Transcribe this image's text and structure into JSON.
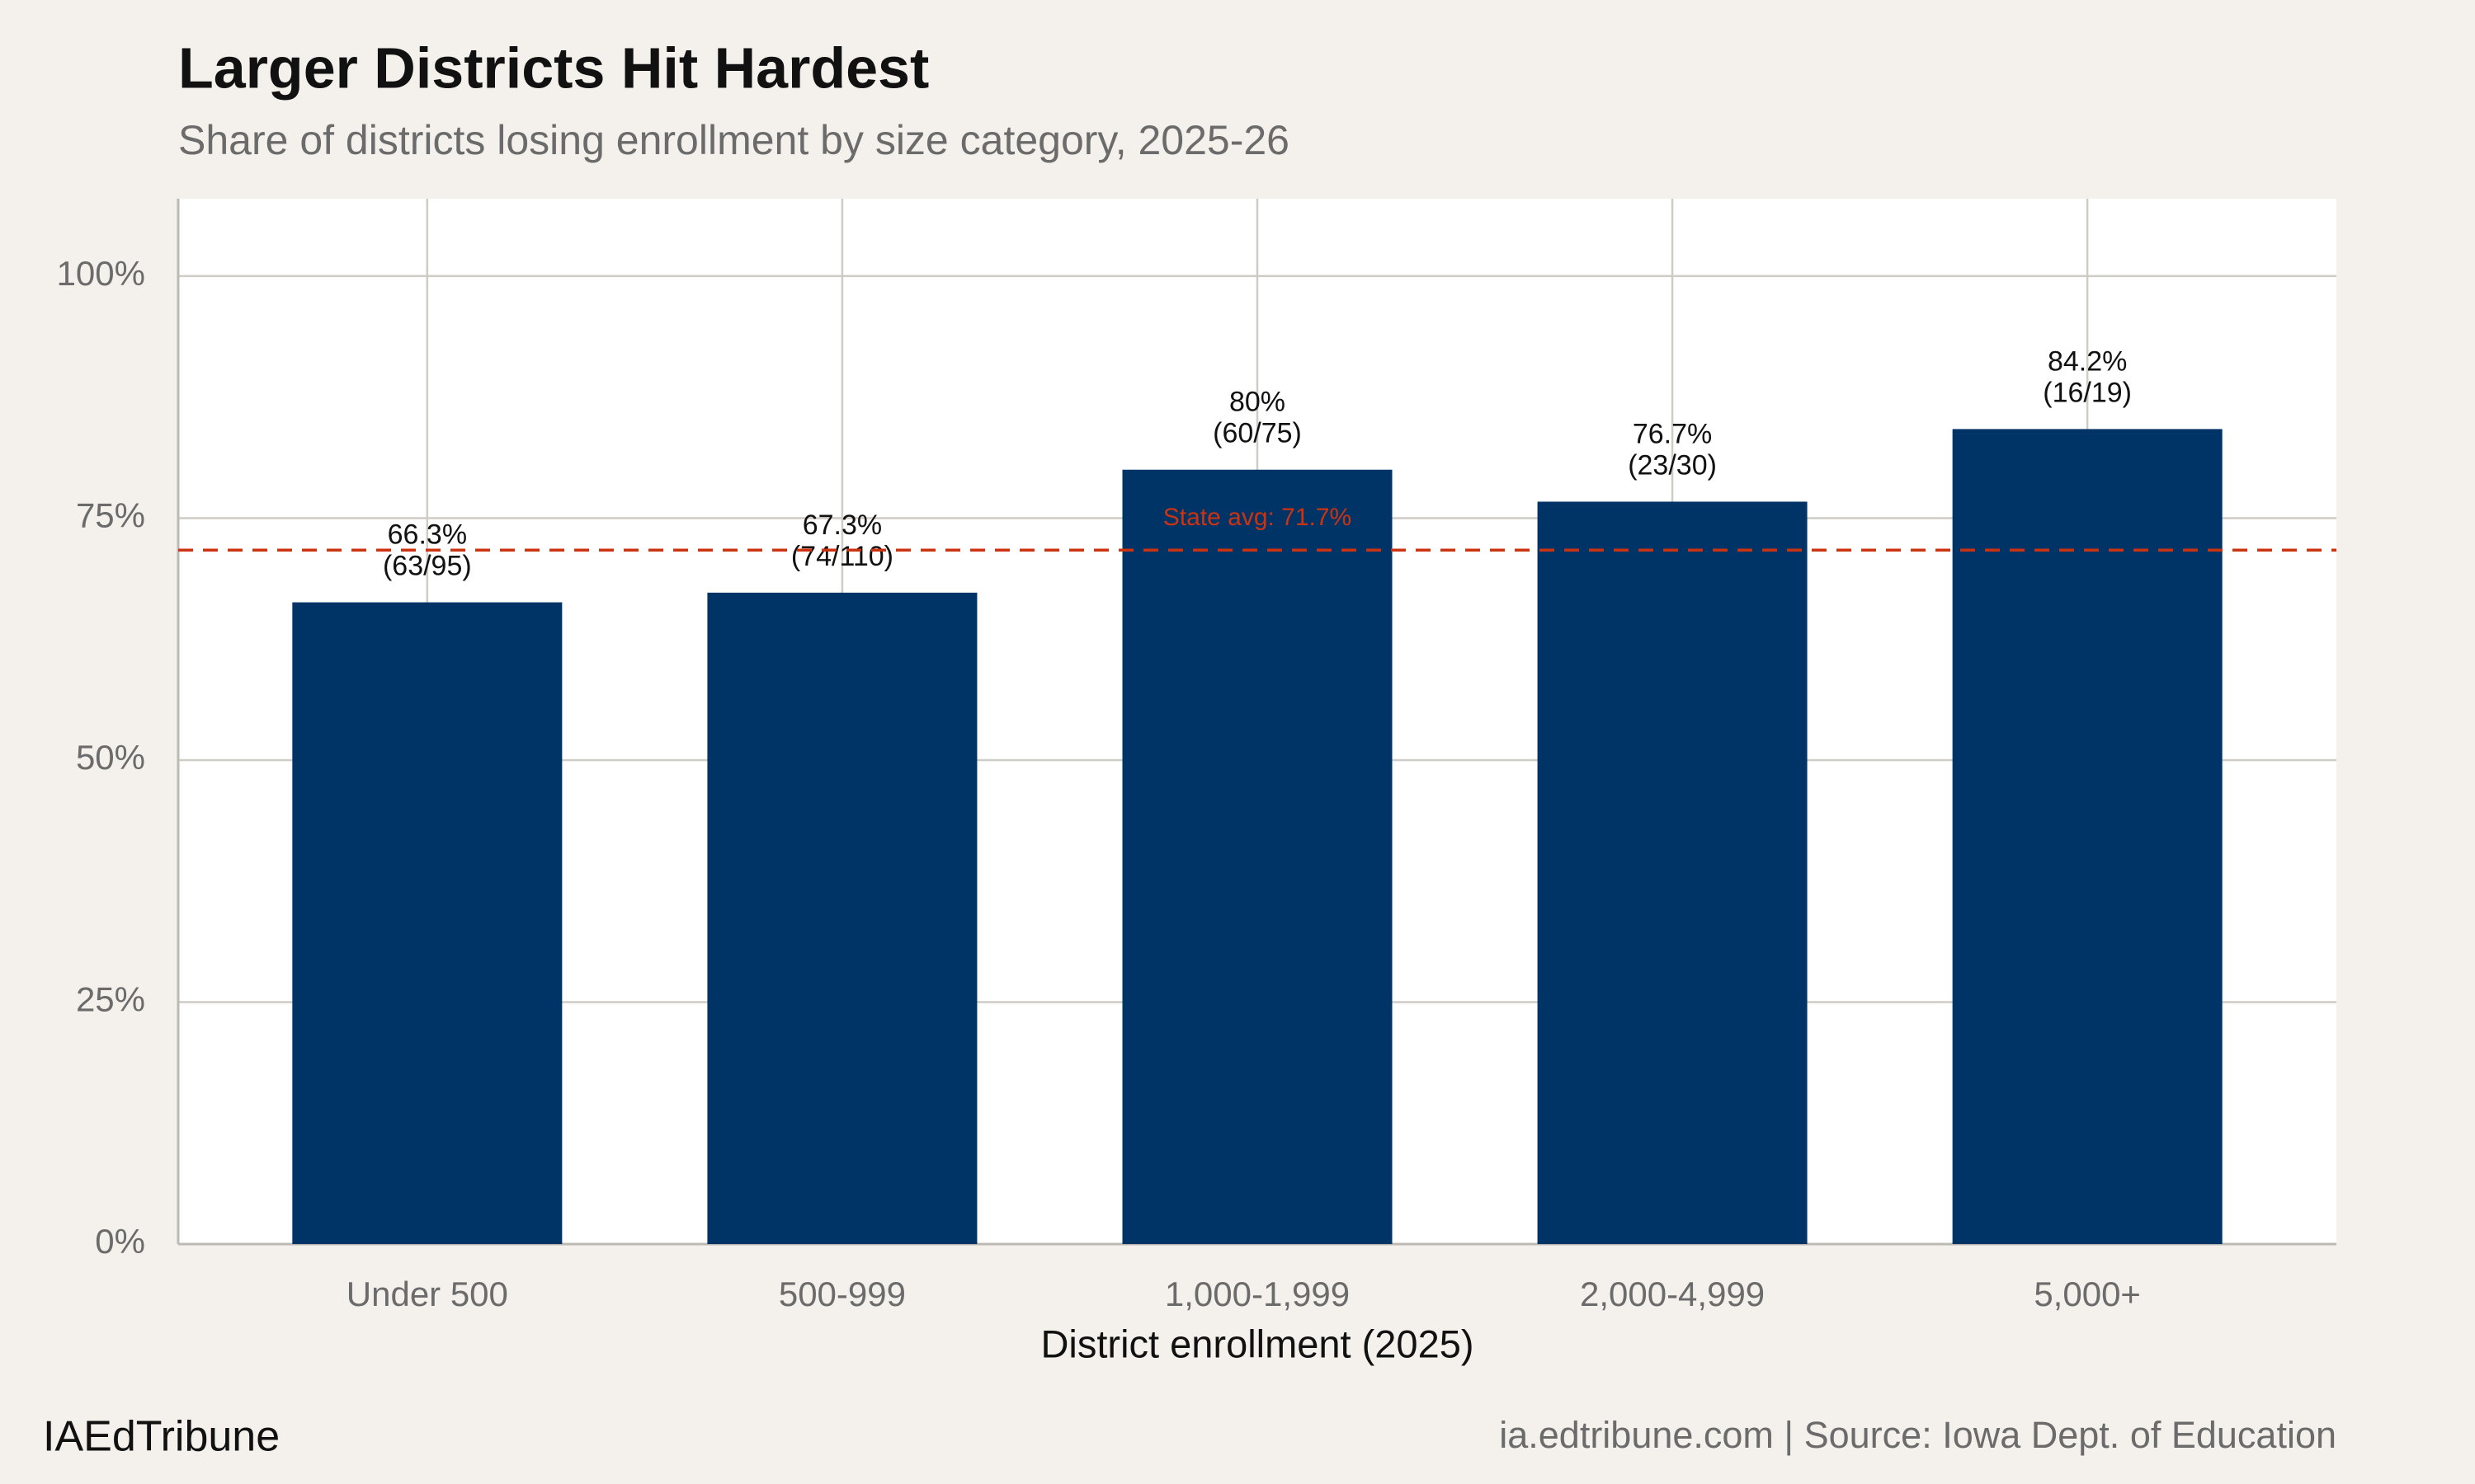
{
  "chart_data": {
    "type": "bar",
    "title": "Larger Districts Hit Hardest",
    "subtitle": "Share of districts losing enrollment by size category, 2025-26",
    "x_label": "District enrollment (2025)",
    "categories": [
      "Under 500",
      "500-999",
      "1,000-1,999",
      "2,000-4,999",
      "5,000+"
    ],
    "values": [
      66.3,
      67.3,
      80,
      76.7,
      84.2
    ],
    "value_labels": [
      "66.3%",
      "67.3%",
      "80%",
      "76.7%",
      "84.2%"
    ],
    "counts": [
      "(63/95)",
      "(74/110)",
      "(60/75)",
      "(23/30)",
      "(16/19)"
    ],
    "color": "#003366",
    "ylim": [
      0,
      108
    ],
    "yticks": [
      {
        "value": 0,
        "label": "0%"
      },
      {
        "value": 25,
        "label": "25%"
      },
      {
        "value": 50,
        "label": "50%"
      },
      {
        "value": 75,
        "label": "75%"
      },
      {
        "value": 100,
        "label": "100%"
      }
    ],
    "grid": true,
    "reference_line": {
      "value": 71.7,
      "label": "State avg: 71.7%",
      "color": "#cc3311"
    },
    "footer_left": "IAEdTribune",
    "footer_right": "ia.edtribune.com | Source: Iowa Dept. of Education"
  }
}
